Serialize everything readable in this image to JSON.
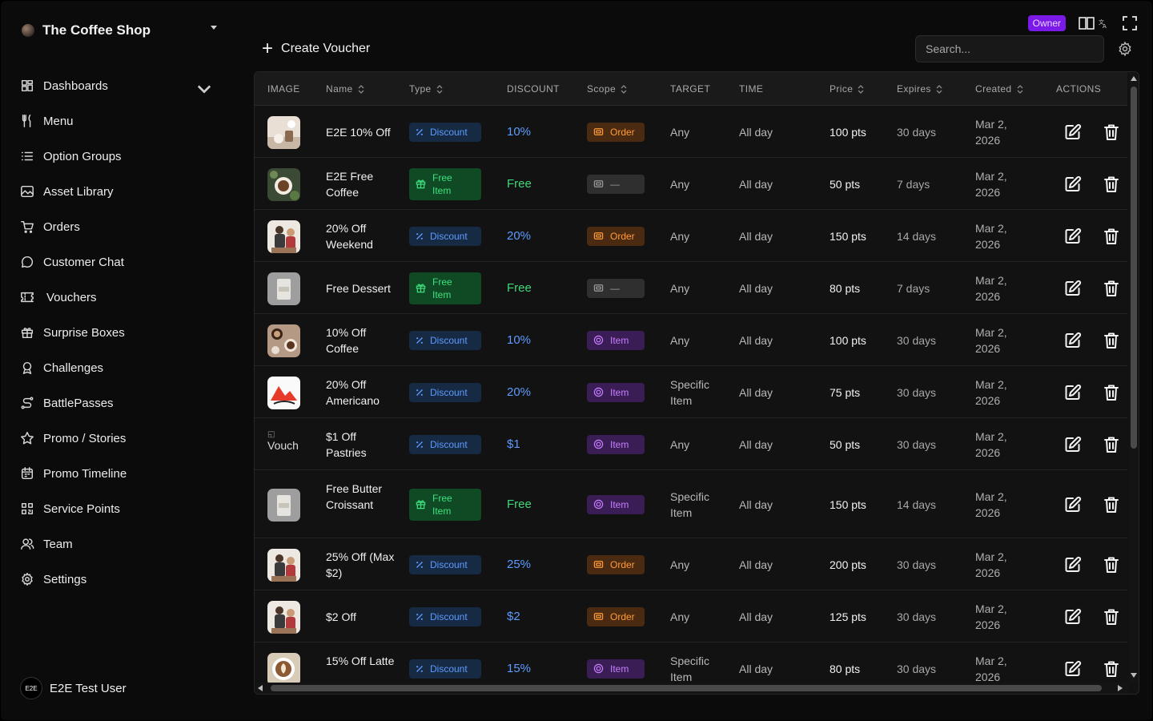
{
  "store": {
    "name": "The Coffee Shop"
  },
  "nav": [
    {
      "label": "Dashboards",
      "icon": "grid-icon",
      "expandable": true
    },
    {
      "label": "Menu",
      "icon": "utensils-icon"
    },
    {
      "label": "Option Groups",
      "icon": "list-icon"
    },
    {
      "label": "Asset Library",
      "icon": "image-icon"
    },
    {
      "label": "Orders",
      "icon": "cart-icon"
    },
    {
      "label": "Customer Chat",
      "icon": "chat-icon"
    },
    {
      "label": "Vouchers",
      "icon": "ticket-icon"
    },
    {
      "label": "Surprise Boxes",
      "icon": "gift-icon"
    },
    {
      "label": "Challenges",
      "icon": "award-icon"
    },
    {
      "label": "BattlePasses",
      "icon": "route-icon"
    },
    {
      "label": "Promo / Stories",
      "icon": "star-icon"
    },
    {
      "label": "Promo Timeline",
      "icon": "calendar-icon"
    },
    {
      "label": "Service Points",
      "icon": "qr-icon"
    },
    {
      "label": "Team",
      "icon": "users-icon"
    },
    {
      "label": "Settings",
      "icon": "gear-icon"
    }
  ],
  "user": {
    "avatar": "E2E",
    "name": "E2E Test User"
  },
  "topbar": {
    "role_badge": "Owner"
  },
  "toolbar": {
    "create_label": "Create Voucher",
    "search_placeholder": "Search..."
  },
  "table": {
    "columns": [
      "IMAGE",
      "Name",
      "Type",
      "DISCOUNT",
      "Scope",
      "TARGET",
      "TIME",
      "Price",
      "Expires",
      "Created",
      "ACTIONS"
    ],
    "rows": [
      {
        "name": "E2E 10% Off",
        "type": "Discount",
        "discount": "10%",
        "scope": "Order",
        "target": "Any",
        "time": "All day",
        "price": "100 pts",
        "expires": "30 days",
        "created": "Mar 2, 2026",
        "image": "cafe-scene"
      },
      {
        "name": "E2E Free Coffee",
        "type": "Free Item",
        "discount": "Free",
        "scope": "—",
        "target": "Any",
        "time": "All day",
        "price": "50 pts",
        "expires": "7 days",
        "created": "Mar 2, 2026",
        "image": "coffee-cup"
      },
      {
        "name": "20% Off Weekend",
        "type": "Discount",
        "discount": "20%",
        "scope": "Order",
        "target": "Any",
        "time": "All day",
        "price": "150 pts",
        "expires": "14 days",
        "created": "Mar 2, 2026",
        "image": "barista"
      },
      {
        "name": "Free Dessert",
        "type": "Free Item",
        "discount": "Free",
        "scope": "—",
        "target": "Any",
        "time": "All day",
        "price": "80 pts",
        "expires": "7 days",
        "created": "Mar 2, 2026",
        "image": "coffee-bag"
      },
      {
        "name": "10% Off Coffee",
        "type": "Discount",
        "discount": "10%",
        "scope": "Item",
        "target": "Any",
        "time": "All day",
        "price": "100 pts",
        "expires": "30 days",
        "created": "Mar 2, 2026",
        "image": "coffee-table"
      },
      {
        "name": "20% Off Americano",
        "type": "Discount",
        "discount": "20%",
        "scope": "Item",
        "target": "Specific Item",
        "time": "All day",
        "price": "75 pts",
        "expires": "30 days",
        "created": "Mar 2, 2026",
        "image": "red-shape"
      },
      {
        "name": "$1 Off Pastries",
        "type": "Discount",
        "discount": "$1",
        "scope": "Item",
        "target": "Any",
        "time": "All day",
        "price": "50 pts",
        "expires": "30 days",
        "created": "Mar 2, 2026",
        "image": "broken",
        "image_alt": "Vouch"
      },
      {
        "name": "Free Butter Croissant",
        "type": "Free Item",
        "discount": "Free",
        "scope": "Item",
        "target": "Specific Item",
        "time": "All day",
        "price": "150 pts",
        "expires": "14 days",
        "created": "Mar 2, 2026",
        "image": "coffee-bag"
      },
      {
        "name": "25% Off (Max $2)",
        "type": "Discount",
        "discount": "25%",
        "scope": "Order",
        "target": "Any",
        "time": "All day",
        "price": "200 pts",
        "expires": "30 days",
        "created": "Mar 2, 2026",
        "image": "barista"
      },
      {
        "name": "$2 Off",
        "type": "Discount",
        "discount": "$2",
        "scope": "Order",
        "target": "Any",
        "time": "All day",
        "price": "125 pts",
        "expires": "30 days",
        "created": "Mar 2, 2026",
        "image": "barista"
      },
      {
        "name": "15% Off Latte",
        "type": "Discount",
        "discount": "15%",
        "scope": "Item",
        "target": "Specific Item",
        "time": "All day",
        "price": "80 pts",
        "expires": "30 days",
        "created": "Mar 2, 2026",
        "image": "latte"
      }
    ]
  }
}
